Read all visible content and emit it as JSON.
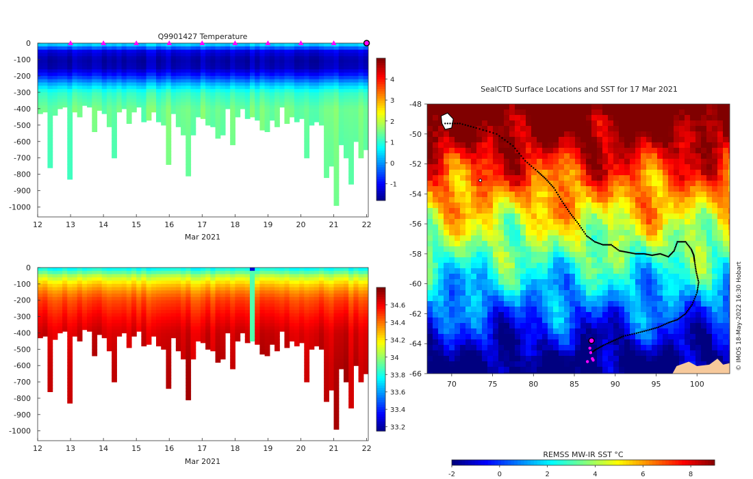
{
  "chart_data": [
    {
      "type": "heatmap",
      "title": "Q9901427  Temperature",
      "xlabel": "Mar 2021",
      "ylabel": "",
      "x_ticks": [
        12,
        13,
        14,
        15,
        16,
        17,
        18,
        19,
        20,
        21,
        22
      ],
      "y_ticks": [
        0,
        -100,
        -200,
        -300,
        -400,
        -500,
        -600,
        -700,
        -800,
        -900,
        -1000
      ],
      "xlim": [
        12,
        22.05
      ],
      "ylim": [
        -1060,
        0
      ],
      "profile_markers_x": [
        13,
        14,
        15,
        16,
        17,
        18,
        19,
        20,
        21
      ],
      "current_marker_x": 22,
      "colorbar": {
        "ticks": [
          "4",
          "3",
          "2",
          "1",
          "0",
          "-1"
        ],
        "range": [
          -1.8,
          5.0
        ]
      },
      "profiles": {
        "x": [
          12.0,
          12.15,
          12.3,
          12.45,
          12.6,
          12.75,
          12.9,
          13.05,
          13.2,
          13.35,
          13.5,
          13.65,
          13.8,
          13.95,
          14.1,
          14.25,
          14.4,
          14.55,
          14.7,
          14.85,
          15.0,
          15.15,
          15.3,
          15.45,
          15.6,
          15.75,
          15.9,
          16.05,
          16.2,
          16.35,
          16.5,
          16.65,
          16.8,
          16.95,
          17.1,
          17.25,
          17.4,
          17.55,
          17.7,
          17.85,
          18.0,
          18.15,
          18.3,
          18.45,
          18.6,
          18.75,
          18.9,
          19.05,
          19.2,
          19.35,
          19.5,
          19.65,
          19.8,
          19.95,
          20.1,
          20.25,
          20.4,
          20.55,
          20.7,
          20.85,
          21.0,
          21.15,
          21.3,
          21.45,
          21.6,
          21.75,
          21.9
        ],
        "max_depth": [
          430,
          420,
          760,
          440,
          400,
          390,
          830,
          420,
          450,
          380,
          390,
          540,
          410,
          430,
          510,
          700,
          420,
          400,
          490,
          420,
          390,
          480,
          470,
          420,
          480,
          500,
          740,
          430,
          510,
          560,
          810,
          560,
          450,
          460,
          500,
          510,
          580,
          560,
          400,
          620,
          450,
          400,
          460,
          450,
          470,
          530,
          540,
          470,
          510,
          390,
          490,
          450,
          480,
          460,
          700,
          500,
          480,
          500,
          820,
          750,
          990,
          620,
          700,
          860,
          600,
          700,
          650
        ],
        "depth": [
          0,
          50,
          100,
          150,
          200,
          250,
          300,
          400,
          600,
          1000
        ],
        "temperature": [
          0.8,
          -1.1,
          -1.5,
          -1.4,
          -0.7,
          0.3,
          1.1,
          1.5,
          1.4,
          1.3
        ]
      }
    },
    {
      "type": "heatmap",
      "title": "",
      "xlabel": "Mar 2021",
      "ylabel": "",
      "x_ticks": [
        12,
        13,
        14,
        15,
        16,
        17,
        18,
        19,
        20,
        21,
        22
      ],
      "y_ticks": [
        0,
        -100,
        -200,
        -300,
        -400,
        -500,
        -600,
        -700,
        -800,
        -900,
        -1000
      ],
      "xlim": [
        12,
        22.05
      ],
      "ylim": [
        -1060,
        0
      ],
      "colorbar": {
        "ticks": [
          "34.6",
          "34.4",
          "34.2",
          "34",
          "33.8",
          "33.6",
          "33.4",
          "33.2"
        ],
        "range": [
          33.15,
          34.8
        ]
      },
      "profiles": {
        "depth": [
          0,
          20,
          50,
          100,
          150,
          200,
          300,
          400,
          600,
          1000
        ],
        "salinity": [
          33.75,
          33.85,
          34.05,
          34.25,
          34.38,
          34.48,
          34.58,
          34.66,
          34.7,
          34.72
        ]
      }
    },
    {
      "type": "heatmap",
      "title": "SealCTD Surface Locations and SST for 17 Mar 2021",
      "xlabel": "",
      "ylabel": "",
      "x_ticks": [
        70,
        75,
        80,
        85,
        90,
        95,
        100
      ],
      "y_ticks": [
        -48,
        -50,
        -52,
        -54,
        -56,
        -58,
        -60,
        -62,
        -64,
        -66
      ],
      "xlim": [
        67,
        104
      ],
      "ylim": [
        -66,
        -48
      ],
      "track": {
        "lon": [
          69.2,
          71.0,
          73.0,
          75.5,
          77.5,
          79.0,
          80.5,
          81.5,
          82.5,
          83.5,
          84.5,
          85.5,
          86.5,
          87.5,
          88.5,
          89.5,
          90.5,
          91.5,
          92.5,
          93.5,
          94.5,
          95.5,
          96.5,
          97.2,
          97.6,
          98.6,
          99.3,
          99.6,
          99.7,
          99.9,
          100.2,
          100.0,
          99.4,
          98.6,
          97.6,
          96.5,
          95.3,
          94.0,
          92.6,
          91.0,
          89.8,
          88.6,
          87.6,
          87.1
        ],
        "lat": [
          -49.3,
          -49.3,
          -49.6,
          -50.0,
          -50.8,
          -51.8,
          -52.5,
          -53.0,
          -53.6,
          -54.5,
          -55.3,
          -56.0,
          -56.8,
          -57.2,
          -57.4,
          -57.4,
          -57.8,
          -57.9,
          -58.0,
          -58.0,
          -58.1,
          -58.0,
          -58.2,
          -57.8,
          -57.2,
          -57.2,
          -57.7,
          -58.1,
          -58.5,
          -59.2,
          -59.9,
          -60.6,
          -61.4,
          -62.0,
          -62.4,
          -62.6,
          -62.9,
          -63.1,
          -63.3,
          -63.5,
          -63.8,
          -64.1,
          -64.4,
          -64.6
        ],
        "current_position": {
          "lon": 87.1,
          "lat": -63.8
        },
        "recent_positions": {
          "lon": [
            86.9,
            87.0,
            87.2,
            86.6,
            87.3
          ],
          "lat": [
            -64.3,
            -64.6,
            -65.0,
            -65.2,
            -65.1
          ]
        }
      },
      "colorbar": {
        "label": "REMSS MW-IR SST °C",
        "ticks": [
          "-2",
          "0",
          "2",
          "4",
          "6",
          "8"
        ],
        "range": [
          -2,
          9
        ]
      },
      "annotation": "© IMOS 18-May-2022 16:30 Hobart"
    }
  ]
}
